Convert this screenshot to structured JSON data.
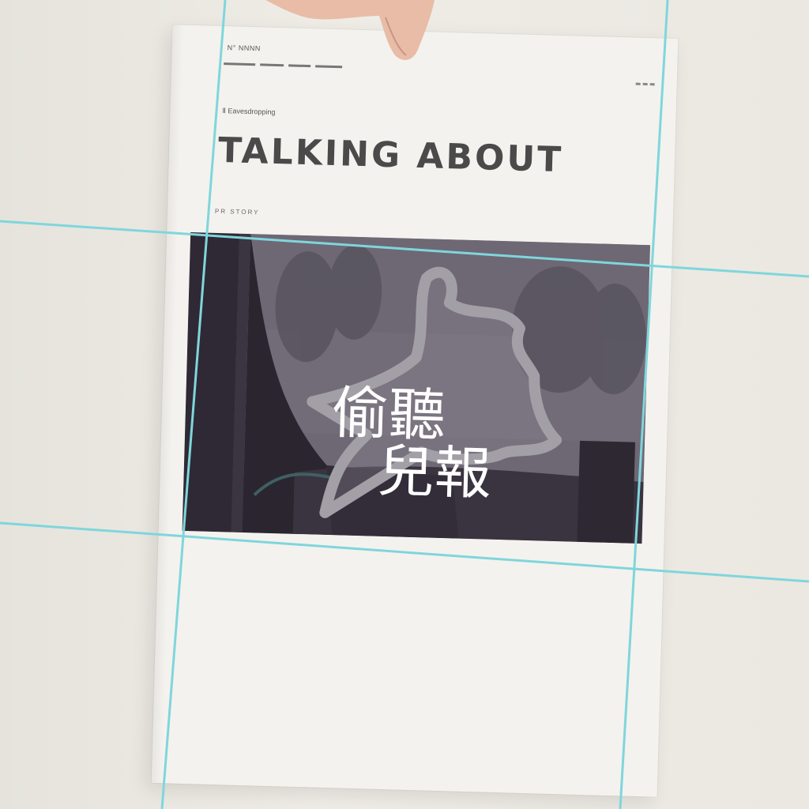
{
  "page": {
    "meta_line": "N° NNNN",
    "kicker": "Ⅱ  Eavesdropping",
    "headline": "TALKING  ABOUT",
    "byline": "PR STORY"
  },
  "logo": {
    "line1": "偷聽",
    "line2": "兒報"
  },
  "colors": {
    "grid_line": "#7fd6dc",
    "paper": "#f4f2ee",
    "photo_tint": "#5e5866",
    "logo_text": "#ffffff",
    "logo_shape": "#a29fa6"
  }
}
